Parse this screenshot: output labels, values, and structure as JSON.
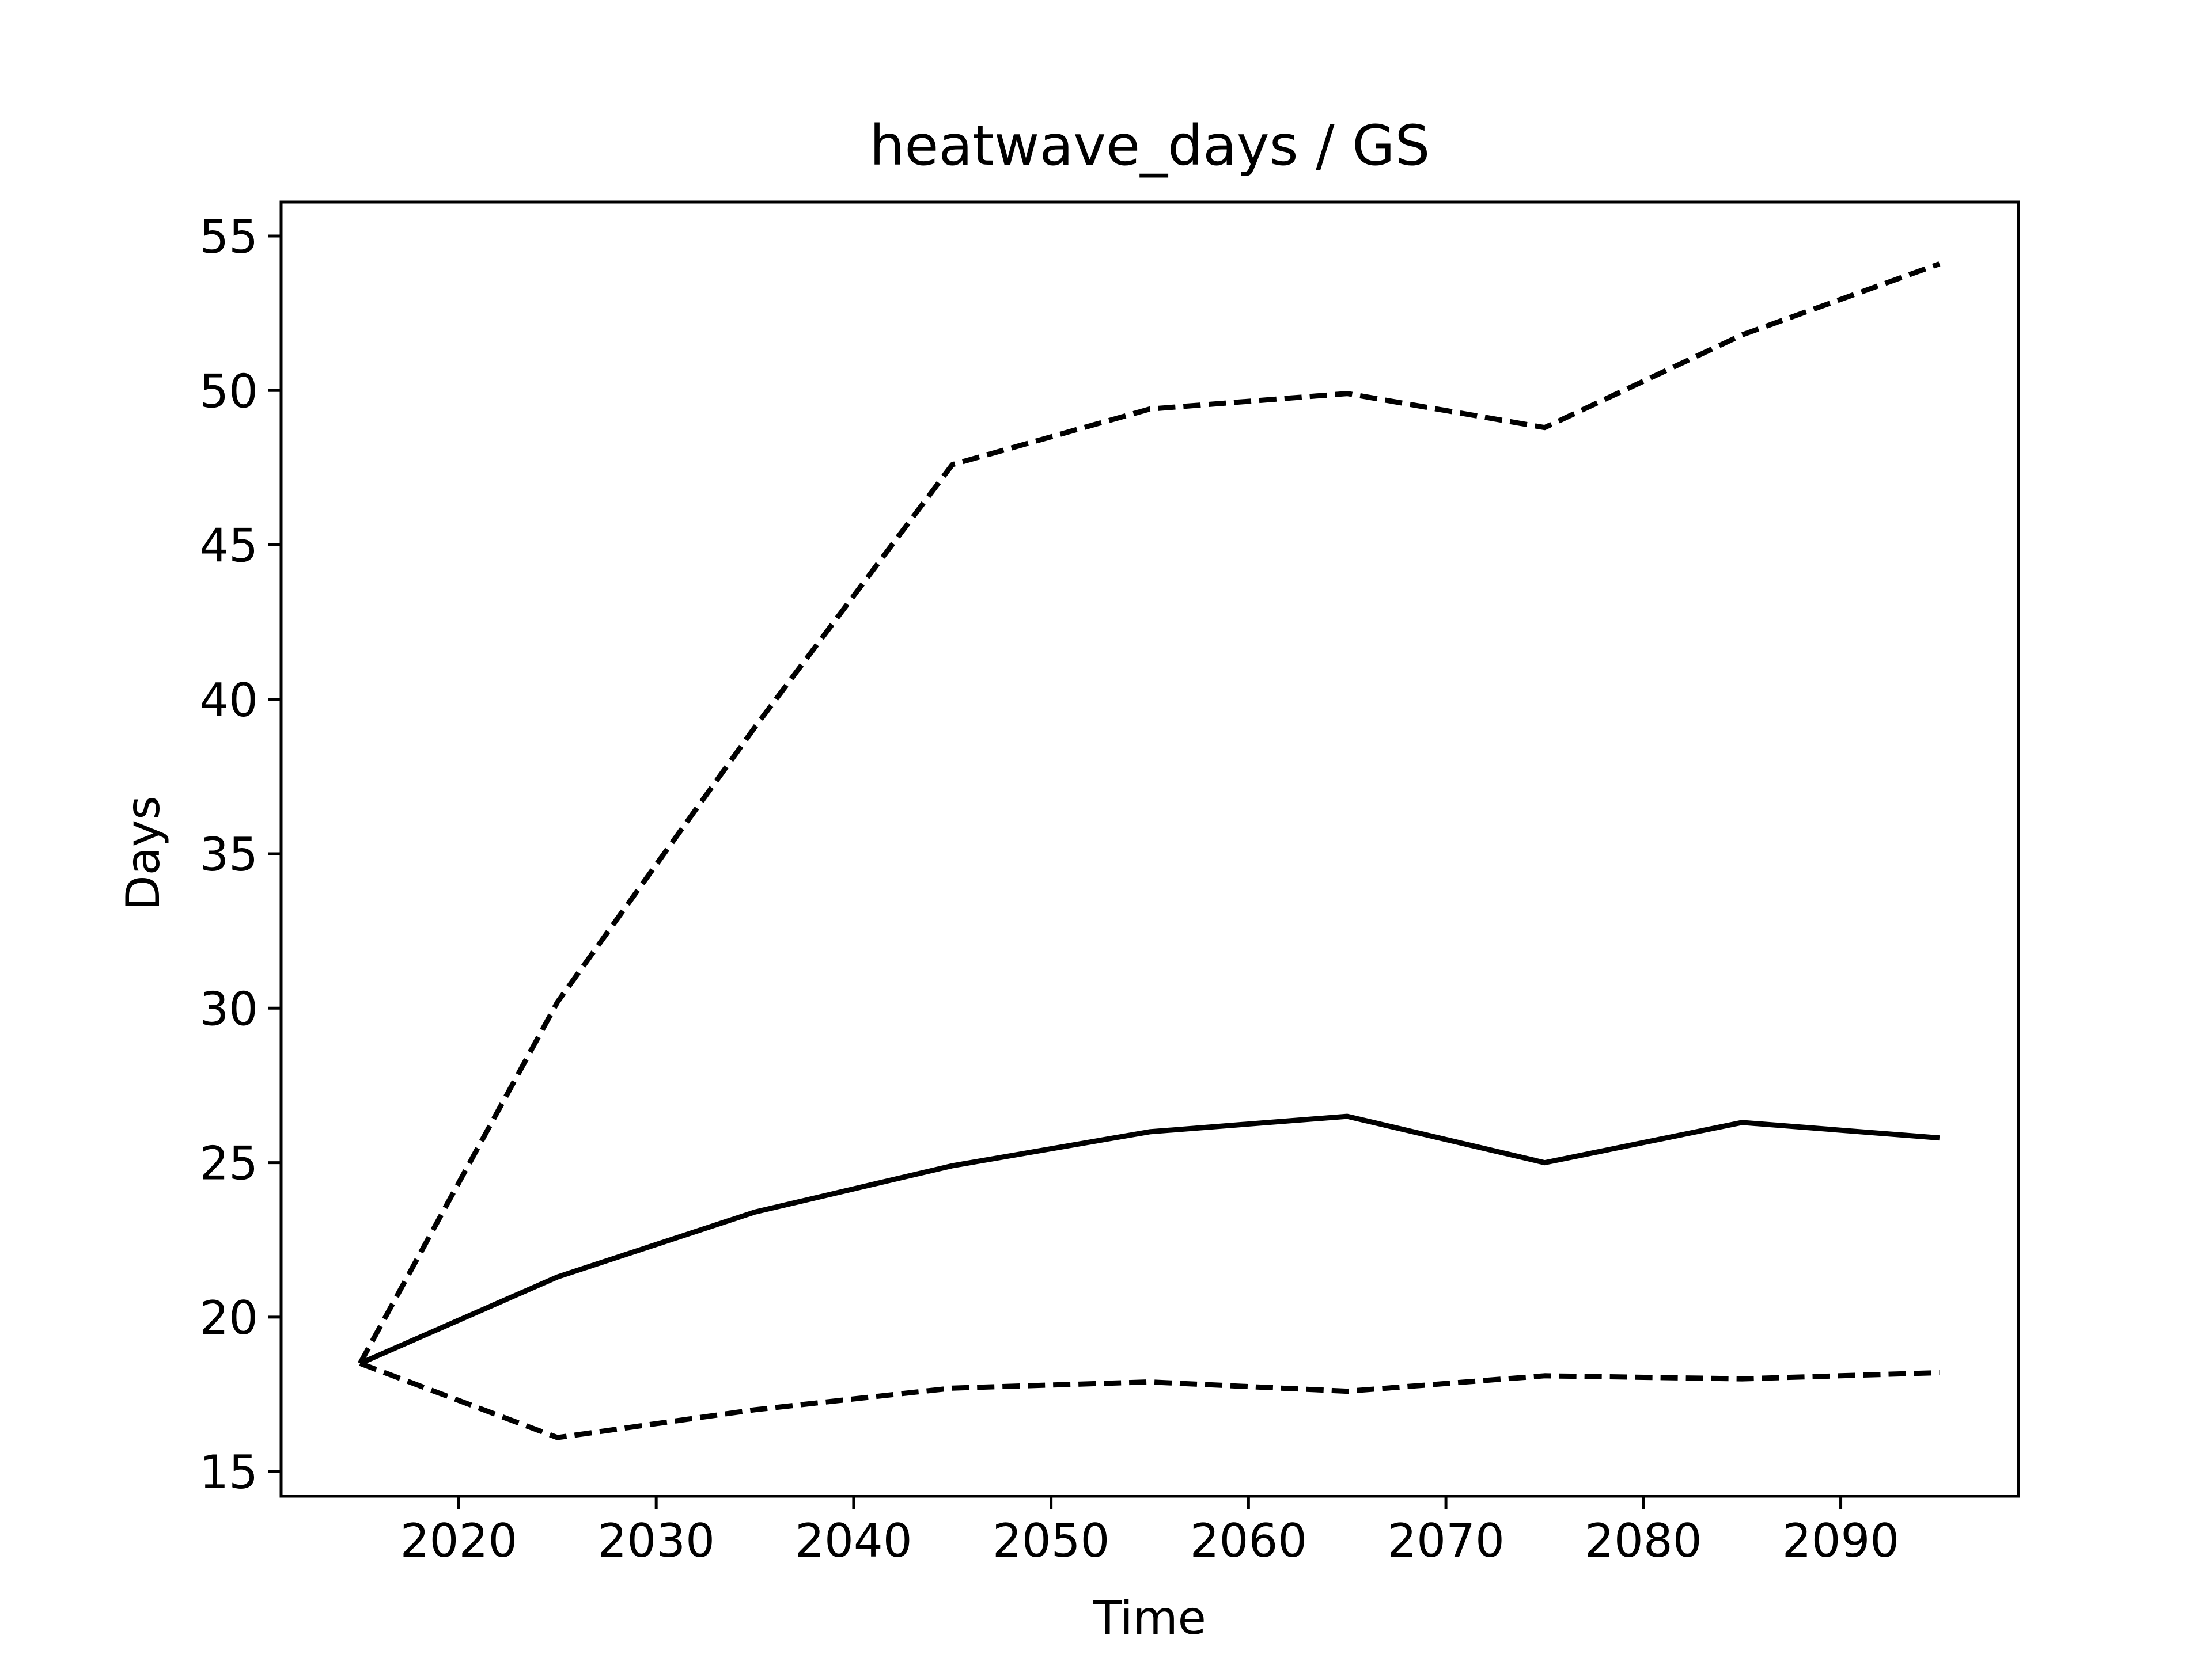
{
  "chart_data": {
    "type": "line",
    "title": "heatwave_days / GS",
    "xlabel": "Time",
    "ylabel": "Days",
    "xlim": [
      2011,
      2099
    ],
    "ylim": [
      14.2,
      56.1
    ],
    "xticks": [
      2020,
      2030,
      2040,
      2050,
      2060,
      2070,
      2080,
      2090
    ],
    "yticks": [
      15,
      20,
      25,
      30,
      35,
      40,
      45,
      50,
      55
    ],
    "grid": false,
    "x": [
      2015,
      2025,
      2035,
      2045,
      2055,
      2065,
      2075,
      2085,
      2095
    ],
    "series": [
      {
        "style": "dashed",
        "color": "#000000",
        "values": [
          18.5,
          30.2,
          39.1,
          47.6,
          49.4,
          49.9,
          48.8,
          51.8,
          54.1
        ]
      },
      {
        "style": "solid",
        "color": "#000000",
        "values": [
          18.5,
          21.3,
          23.4,
          24.9,
          26.0,
          26.5,
          25.0,
          26.3,
          25.8
        ]
      },
      {
        "style": "dashed",
        "color": "#000000",
        "values": [
          18.5,
          16.1,
          17.0,
          17.7,
          17.9,
          17.6,
          18.1,
          18.0,
          18.2
        ]
      }
    ]
  }
}
